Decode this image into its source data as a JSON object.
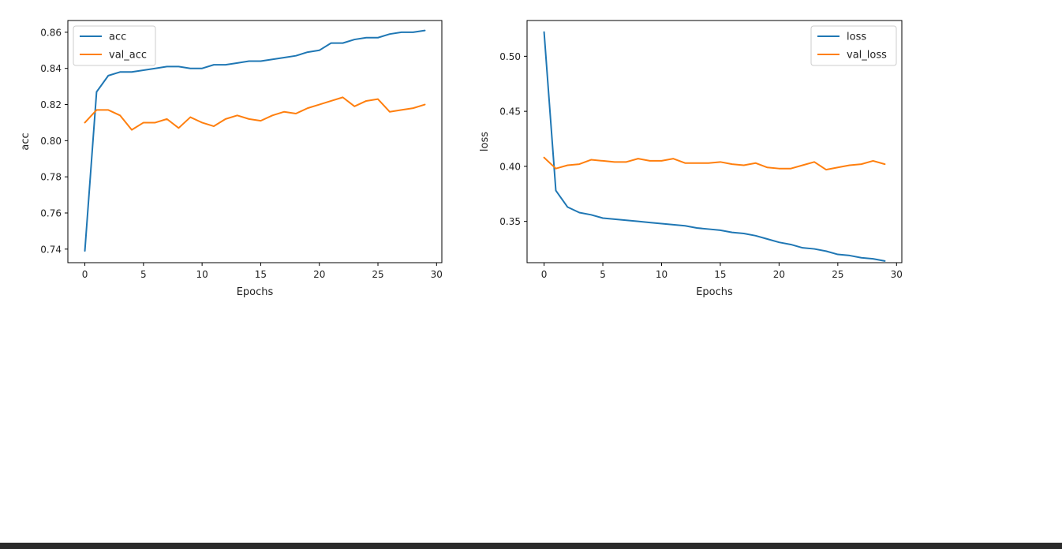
{
  "chart_data": [
    {
      "type": "line",
      "title": "",
      "xlabel": "Epochs",
      "ylabel": "acc",
      "xlim": [
        -1.45,
        30.45
      ],
      "ylim": [
        0.7325,
        0.8665
      ],
      "xticks": [
        0,
        5,
        10,
        15,
        20,
        25,
        30
      ],
      "xtick_labels": [
        "0",
        "5",
        "10",
        "15",
        "20",
        "25",
        "30"
      ],
      "yticks": [
        0.74,
        0.76,
        0.78,
        0.8,
        0.82,
        0.84,
        0.86
      ],
      "ytick_labels": [
        "0.74",
        "0.76",
        "0.78",
        "0.80",
        "0.82",
        "0.84",
        "0.86"
      ],
      "legend_position": "upper-left",
      "grid": false,
      "x": [
        0,
        1,
        2,
        3,
        4,
        5,
        6,
        7,
        8,
        9,
        10,
        11,
        12,
        13,
        14,
        15,
        16,
        17,
        18,
        19,
        20,
        21,
        22,
        23,
        24,
        25,
        26,
        27,
        28,
        29
      ],
      "series": [
        {
          "name": "acc",
          "color": "#1f77b4",
          "values": [
            0.739,
            0.827,
            0.836,
            0.838,
            0.838,
            0.839,
            0.84,
            0.841,
            0.841,
            0.84,
            0.84,
            0.842,
            0.842,
            0.843,
            0.844,
            0.844,
            0.845,
            0.846,
            0.847,
            0.849,
            0.85,
            0.854,
            0.854,
            0.856,
            0.857,
            0.857,
            0.859,
            0.86,
            0.86,
            0.861
          ]
        },
        {
          "name": "val_acc",
          "color": "#ff7f0e",
          "values": [
            0.81,
            0.817,
            0.817,
            0.814,
            0.806,
            0.81,
            0.81,
            0.812,
            0.807,
            0.813,
            0.81,
            0.808,
            0.812,
            0.814,
            0.812,
            0.811,
            0.814,
            0.816,
            0.815,
            0.818,
            0.82,
            0.822,
            0.824,
            0.819,
            0.822,
            0.823,
            0.816,
            0.817,
            0.818,
            0.82
          ]
        }
      ]
    },
    {
      "type": "line",
      "title": "",
      "xlabel": "Epochs",
      "ylabel": "loss",
      "xlim": [
        -1.45,
        30.45
      ],
      "ylim": [
        0.3125,
        0.5325
      ],
      "xticks": [
        0,
        5,
        10,
        15,
        20,
        25,
        30
      ],
      "xtick_labels": [
        "0",
        "5",
        "10",
        "15",
        "20",
        "25",
        "30"
      ],
      "yticks": [
        0.35,
        0.4,
        0.45,
        0.5
      ],
      "ytick_labels": [
        "0.35",
        "0.40",
        "0.45",
        "0.50"
      ],
      "legend_position": "upper-right",
      "grid": false,
      "x": [
        0,
        1,
        2,
        3,
        4,
        5,
        6,
        7,
        8,
        9,
        10,
        11,
        12,
        13,
        14,
        15,
        16,
        17,
        18,
        19,
        20,
        21,
        22,
        23,
        24,
        25,
        26,
        27,
        28,
        29
      ],
      "series": [
        {
          "name": "loss",
          "color": "#1f77b4",
          "values": [
            0.522,
            0.378,
            0.363,
            0.358,
            0.356,
            0.353,
            0.352,
            0.351,
            0.35,
            0.349,
            0.348,
            0.347,
            0.346,
            0.344,
            0.343,
            0.342,
            0.34,
            0.339,
            0.337,
            0.334,
            0.331,
            0.329,
            0.326,
            0.325,
            0.323,
            0.32,
            0.319,
            0.317,
            0.316,
            0.314
          ]
        },
        {
          "name": "val_loss",
          "color": "#ff7f0e",
          "values": [
            0.408,
            0.398,
            0.401,
            0.402,
            0.406,
            0.405,
            0.404,
            0.404,
            0.407,
            0.405,
            0.405,
            0.407,
            0.403,
            0.403,
            0.403,
            0.404,
            0.402,
            0.401,
            0.403,
            0.399,
            0.398,
            0.398,
            0.401,
            0.404,
            0.397,
            0.399,
            0.401,
            0.402,
            0.405,
            0.402
          ]
        }
      ]
    }
  ]
}
